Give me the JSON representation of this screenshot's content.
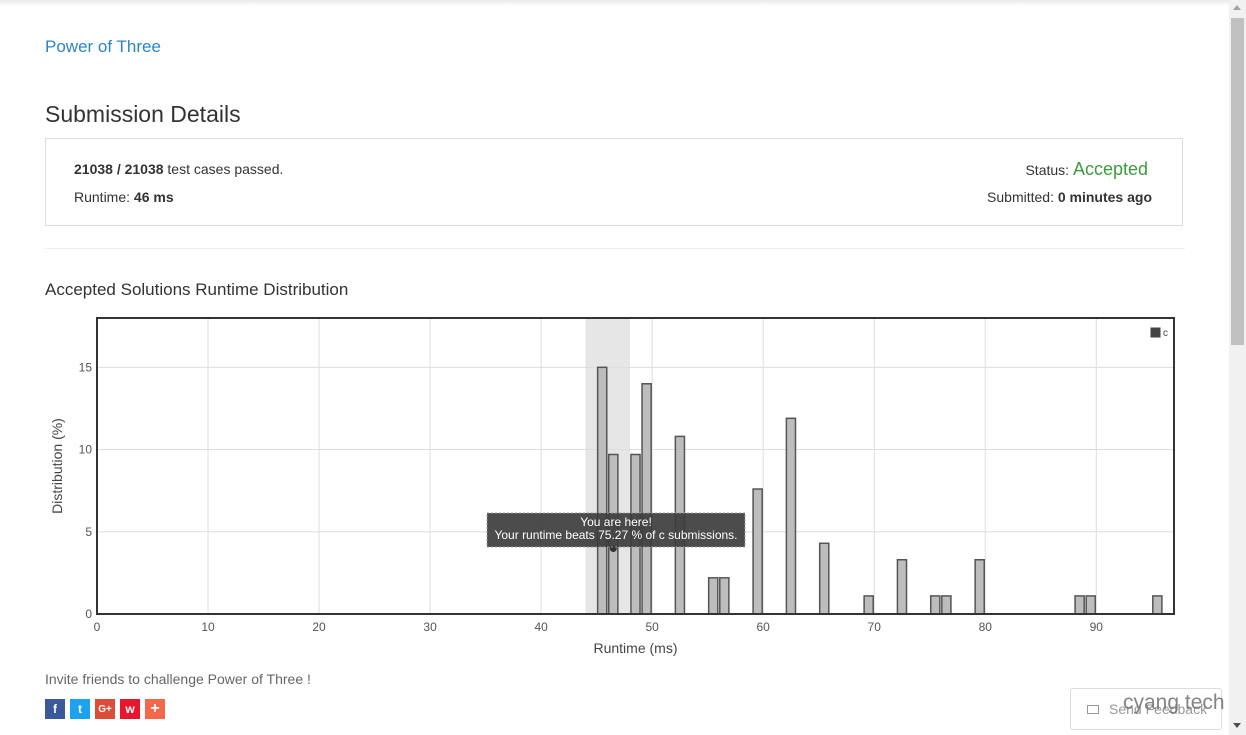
{
  "problem": {
    "title": "Power of Three"
  },
  "page_title": "Submission Details",
  "details": {
    "cases_passed": "21038 / 21038",
    "cases_suffix": " test cases passed.",
    "runtime_label": "Runtime: ",
    "runtime_value": "46 ms",
    "status_label": "Status: ",
    "status_value": "Accepted",
    "submitted_label": "Submitted: ",
    "submitted_value": "0 minutes ago"
  },
  "chart_heading": "Accepted Solutions Runtime Distribution",
  "chart_data": {
    "type": "bar",
    "xlabel": "Runtime (ms)",
    "ylabel": "Distribution (%)",
    "xlim": [
      0,
      97
    ],
    "ylim": [
      0,
      18
    ],
    "x_ticks": [
      0,
      10,
      20,
      30,
      40,
      50,
      60,
      70,
      80,
      90
    ],
    "y_ticks": [
      0,
      5,
      10,
      15
    ],
    "grid": true,
    "legend": {
      "label": "c",
      "position": "top-right"
    },
    "series": [
      {
        "name": "c",
        "x": [
          45,
          46,
          48,
          49,
          52,
          55,
          56,
          59,
          62,
          65,
          69,
          72,
          75,
          76,
          79,
          88,
          89,
          95
        ],
        "values": [
          15.0,
          9.7,
          9.7,
          14.0,
          10.8,
          2.2,
          2.2,
          7.6,
          11.9,
          4.3,
          1.1,
          3.3,
          1.1,
          1.1,
          3.3,
          1.1,
          1.1,
          1.1
        ]
      }
    ],
    "highlight_range": [
      44,
      48
    ],
    "tooltip": {
      "line1": "You are here!",
      "line2": "Your runtime beats 75.27 % of c submissions."
    }
  },
  "invite": {
    "text": "Invite friends to challenge Power of Three !",
    "share_buttons": [
      {
        "id": "facebook",
        "glyph": "f",
        "color": "#3b5998"
      },
      {
        "id": "twitter",
        "glyph": "t",
        "color": "#1da1f2"
      },
      {
        "id": "google-plus",
        "glyph": "G+",
        "color": "#dd4b39"
      },
      {
        "id": "weibo",
        "glyph": "w",
        "color": "#e6162d"
      },
      {
        "id": "more",
        "glyph": "+",
        "color": "#f4674b"
      }
    ]
  },
  "feedback": {
    "label": "Send Feedback"
  },
  "watermark": "cyang tech"
}
